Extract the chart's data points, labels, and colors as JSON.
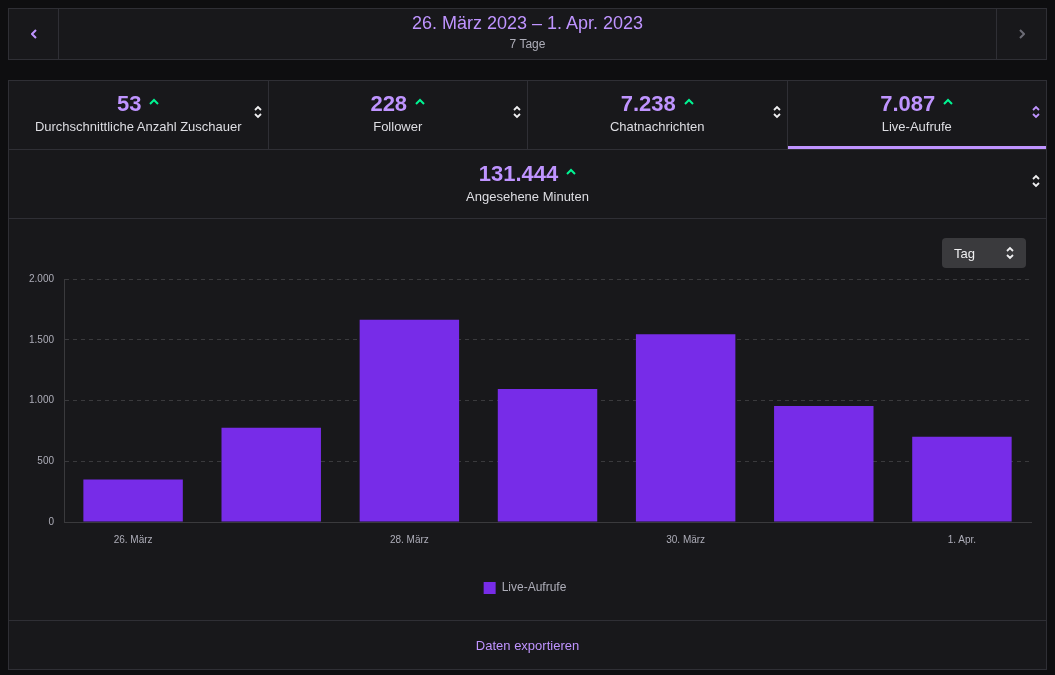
{
  "chart_data": {
    "type": "bar",
    "title": "26. März 2023 – 1. Apr. 2023",
    "subtitle": "7 Tage",
    "categories": [
      "26. März",
      null,
      "28. März",
      null,
      "30. März",
      null,
      "1. Apr."
    ],
    "series": [
      {
        "name": "Live-Aufrufe",
        "color": "#772ce8",
        "values": [
          350,
          775,
          1665,
          1095,
          1545,
          955,
          702
        ]
      }
    ],
    "ylim": [
      0,
      2000
    ],
    "yticks": [
      0,
      {
        "value": 500,
        "label": "500"
      },
      {
        "value": 1000,
        "label": "1.000"
      },
      {
        "value": 1500,
        "label": "1.500"
      },
      {
        "value": 2000,
        "label": "2.000"
      }
    ],
    "grid": "y",
    "legend": "bottom",
    "annotations": [
      "53",
      "Durchschnittliche Anzahl Zuschauer",
      "228",
      "Follower",
      "7.238",
      "Chatnachrichten",
      "7.087",
      "Live-Aufrufe",
      "131.444",
      "Angesehene Minuten",
      "Tag",
      "Daten exportieren"
    ]
  }
}
